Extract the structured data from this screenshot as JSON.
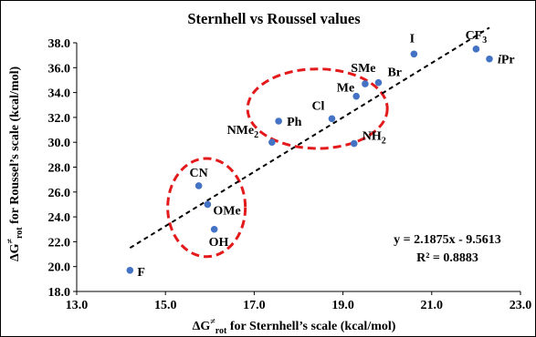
{
  "chart_data": {
    "type": "scatter",
    "title": "Sternhell vs Roussel values",
    "xlabel": {
      "base": "ΔG",
      "sup": "≠",
      "sub": "rot",
      "rest": " for Sternhell’s scale (kcal/mol)"
    },
    "ylabel": {
      "base": "ΔG",
      "sup": "≠",
      "sub": "rot",
      "rest": " for Roussel’s scale (kcal/mol)"
    },
    "xlim": [
      13.0,
      23.0
    ],
    "ylim": [
      18.0,
      38.0
    ],
    "xticks": [
      13.0,
      15.0,
      17.0,
      19.0,
      21.0,
      23.0
    ],
    "yticks": [
      18.0,
      20.0,
      22.0,
      24.0,
      26.0,
      28.0,
      30.0,
      32.0,
      34.0,
      36.0,
      38.0
    ],
    "tick_format_decimals": 1,
    "grid": false,
    "point_color": "#4472c4",
    "points": [
      {
        "label": "F",
        "x": 14.2,
        "y": 19.7
      },
      {
        "label": "CN",
        "x": 15.75,
        "y": 26.5
      },
      {
        "label": "OMe",
        "x": 15.95,
        "y": 25.0
      },
      {
        "label": "OH",
        "x": 16.1,
        "y": 23.0
      },
      {
        "label": "NMe",
        "label_sub": "2",
        "x": 17.4,
        "y": 30.0
      },
      {
        "label": "Ph",
        "x": 17.55,
        "y": 31.7
      },
      {
        "label": "Cl",
        "x": 18.75,
        "y": 31.9
      },
      {
        "label": "NH",
        "label_sub": "2",
        "x": 19.25,
        "y": 29.9
      },
      {
        "label": "Me",
        "x": 19.3,
        "y": 33.7
      },
      {
        "label": "SMe",
        "x": 19.5,
        "y": 34.7
      },
      {
        "label": "Br",
        "x": 19.8,
        "y": 34.8
      },
      {
        "label": "I",
        "x": 20.6,
        "y": 37.1
      },
      {
        "label": "CF",
        "label_sub": "3",
        "x": 22.0,
        "y": 37.5
      },
      {
        "label": "iPr",
        "label_prefix_italic": "i",
        "label_rest": "Pr",
        "x": 22.3,
        "y": 36.7
      }
    ],
    "trendline": {
      "type": "linear",
      "slope": 2.1875,
      "intercept": -9.5613,
      "x_range": [
        14.2,
        22.3
      ],
      "style": "dashed",
      "color": "#000000"
    },
    "equation_text": "y = 2.1875x - 9.5613",
    "r2_text": "R² = 0.8883",
    "highlight_ellipses": [
      {
        "contains": [
          "CN",
          "OMe",
          "OH"
        ],
        "color": "#e31a1c",
        "style": "dashed"
      },
      {
        "contains": [
          "Ph",
          "Cl",
          "Me"
        ],
        "color": "#e31a1c",
        "style": "dashed"
      }
    ]
  }
}
